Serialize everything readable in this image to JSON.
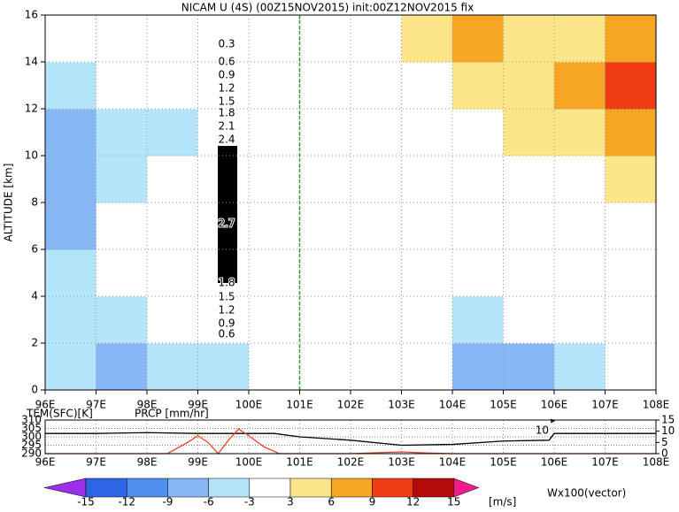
{
  "chart_data": [
    {
      "type": "contour",
      "title": "NICAM U (4S) (00Z15NOV2015) init:00Z12NOV2015 fix",
      "y_label": "ALTITUDE [km]",
      "x": [
        96.5,
        97.5,
        98.5,
        99.5,
        100.5,
        101.5,
        102.5,
        103.5,
        104.5,
        105.5,
        106.5,
        107.5
      ],
      "y": [
        1,
        3,
        5,
        7,
        9,
        11,
        13,
        15
      ],
      "z": [
        [
          -6,
          -9,
          -6,
          -6,
          -3,
          -3,
          0,
          -3,
          -9,
          -9,
          -6,
          -3
        ],
        [
          -6,
          -6,
          -3,
          -3,
          0,
          0,
          0,
          -3,
          -6,
          -3,
          -3,
          0
        ],
        [
          -6,
          -3,
          -3,
          -3,
          0,
          0,
          0,
          -3,
          -3,
          0,
          0,
          0
        ],
        [
          -9,
          -3,
          -3,
          -3,
          0,
          0,
          0,
          -3,
          0,
          0,
          0,
          0
        ],
        [
          -9,
          -6,
          -3,
          -3,
          0,
          0,
          -3,
          0,
          0,
          0,
          0,
          3
        ],
        [
          -9,
          -6,
          -6,
          -3,
          0,
          0,
          0,
          0,
          0,
          3,
          3,
          6
        ],
        [
          -6,
          -3,
          -3,
          -3,
          0,
          0,
          0,
          0,
          3,
          3,
          6,
          9
        ],
        [
          -3,
          -3,
          -3,
          -3,
          0,
          0,
          0,
          3,
          6,
          3,
          3,
          6
        ]
      ],
      "annotations": [
        "0.3",
        "0.6",
        "0.9",
        "1.2",
        "1.5",
        "1.8",
        "2.1",
        "2.4",
        "2.7",
        "1.8",
        "1.5",
        "1.2",
        "0.9",
        "0.6"
      ],
      "xlim": [
        96,
        108
      ],
      "ylim": [
        0,
        16
      ],
      "xticks": [
        {
          "value": 96,
          "label": "96E"
        },
        {
          "value": 97,
          "label": "97E"
        },
        {
          "value": 98,
          "label": "98E"
        },
        {
          "value": 99,
          "label": "99E"
        },
        {
          "value": 100,
          "label": "100E"
        },
        {
          "value": 101,
          "label": "101E"
        },
        {
          "value": 102,
          "label": "102E"
        },
        {
          "value": 103,
          "label": "103E"
        },
        {
          "value": 104,
          "label": "104E"
        },
        {
          "value": 105,
          "label": "105E"
        },
        {
          "value": 106,
          "label": "106E"
        },
        {
          "value": 107,
          "label": "107E"
        },
        {
          "value": 108,
          "label": "108E"
        }
      ],
      "yticks": [
        0,
        2,
        4,
        6,
        8,
        10,
        12,
        14,
        16
      ],
      "grid": true
    },
    {
      "type": "line",
      "series": [
        {
          "name": "TEM(SFC)[K]",
          "color": "#000000",
          "x": [
            96,
            97,
            98,
            99,
            100,
            100.5,
            101,
            102,
            103,
            104,
            105,
            105.9,
            106,
            107,
            108
          ],
          "values": [
            302,
            302,
            302.5,
            302,
            302,
            302,
            300,
            298,
            295,
            295.5,
            297.5,
            298,
            302,
            302,
            302
          ]
        },
        {
          "name": "PRCP [mm/hr]",
          "color": "#e8402a",
          "axis": "y2",
          "x": [
            96,
            98.4,
            98.8,
            99,
            99.2,
            99.4,
            99.6,
            99.8,
            100,
            100.3,
            100.6,
            102,
            103,
            103.5,
            104,
            108
          ],
          "values": [
            0,
            0,
            5,
            8,
            5,
            0,
            6,
            11,
            8,
            3,
            0,
            0,
            0.8,
            0.3,
            0,
            0
          ]
        }
      ],
      "annotation": "10",
      "xlim": [
        96,
        108
      ],
      "ylim": [
        290,
        310
      ],
      "y2lim": [
        0,
        15
      ],
      "xticks": [
        {
          "value": 96,
          "label": "96E"
        },
        {
          "value": 97,
          "label": "97E"
        },
        {
          "value": 98,
          "label": "98E"
        },
        {
          "value": 99,
          "label": "99E"
        },
        {
          "value": 100,
          "label": "100E"
        },
        {
          "value": 101,
          "label": "101E"
        },
        {
          "value": 102,
          "label": "102E"
        },
        {
          "value": 103,
          "label": "103E"
        },
        {
          "value": 104,
          "label": "104E"
        },
        {
          "value": 105,
          "label": "105E"
        },
        {
          "value": 106,
          "label": "106E"
        },
        {
          "value": 107,
          "label": "107E"
        },
        {
          "value": 108,
          "label": "108E"
        }
      ],
      "yticks": [
        290,
        295,
        300,
        305,
        310
      ],
      "y2ticks": [
        0,
        5,
        10,
        15
      ],
      "grid": true
    },
    {
      "type": "colorbar",
      "levels": [
        -15,
        -12,
        -9,
        -6,
        -3,
        3,
        6,
        9,
        12,
        15
      ],
      "colors": [
        "#9b30e8",
        "#2e64e6",
        "#4f8ff0",
        "#86b6f4",
        "#b4e4fa",
        "#ffffff",
        "#fde68a",
        "#f7a623",
        "#f03c14",
        "#b40a0a",
        "#f01e8c"
      ],
      "unit": "[m/s]",
      "note": "Wx100(vector)"
    }
  ]
}
